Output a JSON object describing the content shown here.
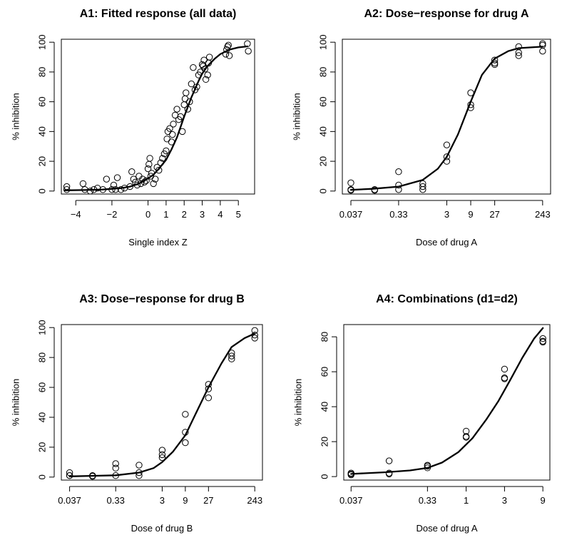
{
  "chart_data": [
    {
      "type": "scatter",
      "title": "A1: Fitted response (all data)",
      "xlabel": "Single index Z",
      "ylabel": "% inhibition",
      "x_scale": "linear",
      "xlim": [
        -4.8,
        5.9
      ],
      "ylim": [
        -2,
        102
      ],
      "x_ticks": [
        -4,
        -2,
        0,
        1,
        2,
        3,
        4,
        5
      ],
      "x_tick_labels": [
        "−4",
        "−2",
        "0",
        "1",
        "2",
        "3",
        "4",
        "5"
      ],
      "y_ticks": [
        0,
        20,
        40,
        60,
        80,
        100
      ],
      "y_tick_labels": [
        "0",
        "20",
        "40",
        "60",
        "80",
        "100"
      ],
      "curve": {
        "x": [
          -4.6,
          -3.5,
          -2.5,
          -1.5,
          -1.0,
          -0.5,
          0.0,
          0.3,
          0.6,
          1.0,
          1.3,
          1.6,
          2.0,
          2.4,
          2.8,
          3.0,
          3.3,
          3.7,
          4.0,
          4.5,
          5.0,
          5.5
        ],
        "y": [
          0.5,
          0.7,
          1.0,
          2.0,
          3.0,
          5.0,
          8.5,
          11,
          15,
          21,
          28,
          36,
          50,
          63,
          74,
          79,
          84,
          89,
          92,
          95,
          96.5,
          97.2
        ]
      },
      "points": {
        "x": [
          -4.5,
          -4.5,
          -3.6,
          -3.5,
          -3.2,
          -3.0,
          -2.8,
          -2.5,
          -2.3,
          -2.0,
          -1.9,
          -1.8,
          -1.7,
          -1.5,
          -1.3,
          -1.0,
          -0.9,
          -0.8,
          -0.7,
          -0.6,
          -0.5,
          -0.4,
          -0.3,
          -0.2,
          -0.1,
          0.0,
          0.05,
          0.1,
          0.15,
          0.2,
          0.3,
          0.4,
          0.5,
          0.6,
          0.7,
          0.8,
          0.9,
          1.0,
          1.05,
          1.1,
          1.2,
          1.3,
          1.35,
          1.4,
          1.5,
          1.6,
          1.7,
          1.8,
          1.9,
          2.0,
          2.05,
          2.1,
          2.2,
          2.3,
          2.4,
          2.5,
          2.6,
          2.7,
          2.8,
          2.9,
          3.0,
          3.05,
          3.1,
          3.15,
          3.2,
          3.3,
          3.35,
          3.4,
          4.3,
          4.35,
          4.4,
          4.45,
          4.5,
          5.5,
          5.55
        ],
        "y": [
          1,
          3,
          5,
          1,
          0,
          1,
          2,
          1,
          8,
          1,
          4,
          1,
          9,
          1,
          2,
          3,
          13,
          8,
          6,
          4,
          10,
          5,
          8,
          6,
          7,
          15,
          18,
          22,
          10,
          12,
          5,
          8,
          16,
          14,
          19,
          22,
          25,
          27,
          35,
          40,
          42,
          33,
          38,
          45,
          51,
          55,
          48,
          50,
          40,
          58,
          62,
          66,
          55,
          60,
          72,
          83,
          68,
          70,
          78,
          80,
          85,
          84,
          88,
          82,
          75,
          78,
          86,
          90,
          92,
          95,
          97,
          98,
          91,
          99,
          94
        ]
      }
    },
    {
      "type": "scatter",
      "title": "A2: Dose−response for drug A",
      "xlabel": "Dose of drug A",
      "ylabel": "% inhibition",
      "x_scale": "log",
      "xlim": [
        0.025,
        350
      ],
      "ylim": [
        -2,
        102
      ],
      "x_ticks": [
        0.037,
        0.33,
        3,
        9,
        27,
        243
      ],
      "x_tick_labels": [
        "0.037",
        "0.33",
        "3",
        "9",
        "27",
        "243"
      ],
      "y_ticks": [
        0,
        20,
        40,
        60,
        80,
        100
      ],
      "y_tick_labels": [
        "0",
        "20",
        "40",
        "60",
        "80",
        "100"
      ],
      "curve": {
        "x": [
          0.037,
          0.1,
          0.33,
          1,
          2,
          3,
          5,
          9,
          15,
          27,
          50,
          81,
          243
        ],
        "y": [
          0.8,
          1.5,
          3.0,
          7.5,
          15,
          23,
          38,
          60,
          78,
          89,
          94,
          96,
          97
        ]
      },
      "points": {
        "x": [
          0.037,
          0.037,
          0.037,
          0.11,
          0.11,
          0.33,
          0.33,
          0.33,
          1,
          1,
          1,
          3,
          3,
          3,
          9,
          9,
          9,
          27,
          27,
          27,
          81,
          81,
          81,
          243,
          243,
          243
        ],
        "y": [
          0.5,
          1,
          5.5,
          0.5,
          1,
          13,
          4,
          1,
          1,
          3,
          5,
          31,
          23,
          20,
          66,
          58,
          56,
          88,
          86,
          85,
          97,
          93,
          91,
          99,
          98,
          94
        ]
      }
    },
    {
      "type": "scatter",
      "title": "A3: Dose−response for drug B",
      "xlabel": "Dose of drug B",
      "ylabel": "% inhibition",
      "x_scale": "log",
      "xlim": [
        0.025,
        350
      ],
      "ylim": [
        -2,
        102
      ],
      "x_ticks": [
        0.037,
        0.33,
        3,
        9,
        27,
        243
      ],
      "x_tick_labels": [
        "0.037",
        "0.33",
        "3",
        "9",
        "27",
        "243"
      ],
      "y_ticks": [
        0,
        20,
        40,
        60,
        80,
        100
      ],
      "y_tick_labels": [
        "0",
        "20",
        "40",
        "60",
        "80",
        "100"
      ],
      "curve": {
        "x": [
          0.037,
          0.1,
          0.33,
          1,
          2,
          3,
          5,
          9,
          15,
          27,
          50,
          81,
          150,
          243
        ],
        "y": [
          0.5,
          0.8,
          1.2,
          3.0,
          6.0,
          10,
          17,
          28,
          43,
          60,
          76,
          87,
          93,
          96
        ]
      },
      "points": {
        "x": [
          0.037,
          0.037,
          0.037,
          0.11,
          0.11,
          0.33,
          0.33,
          0.33,
          1,
          1,
          1,
          3,
          3,
          3,
          9,
          9,
          9,
          27,
          27,
          27,
          81,
          81,
          81,
          243,
          243,
          243
        ],
        "y": [
          3,
          1,
          1,
          1,
          0.5,
          9,
          6,
          1,
          8,
          3,
          1,
          18,
          15,
          13,
          42,
          30,
          23,
          62,
          59,
          53,
          83,
          81,
          79,
          98,
          95,
          93
        ]
      }
    },
    {
      "type": "scatter",
      "title": "A4: Combinations (d1=d2)",
      "xlabel": "Dose of drug A",
      "ylabel": "% inhibition",
      "x_scale": "log",
      "xlim": [
        0.03,
        11
      ],
      "ylim": [
        -2,
        87
      ],
      "x_ticks": [
        0.037,
        0.33,
        1,
        3,
        9
      ],
      "x_tick_labels": [
        "0.037",
        "0.33",
        "1",
        "3",
        "9"
      ],
      "y_ticks": [
        0,
        20,
        40,
        60,
        80
      ],
      "y_tick_labels": [
        "0",
        "20",
        "40",
        "60",
        "80"
      ],
      "curve": {
        "x": [
          0.037,
          0.1,
          0.2,
          0.33,
          0.5,
          0.8,
          1.2,
          1.8,
          2.5,
          3.5,
          5,
          7,
          9
        ],
        "y": [
          1.5,
          2.5,
          3.5,
          5.0,
          8,
          14,
          22,
          33,
          43,
          55,
          68,
          79,
          85
        ]
      },
      "points": {
        "x": [
          0.037,
          0.037,
          0.037,
          0.11,
          0.11,
          0.11,
          0.33,
          0.33,
          0.33,
          1,
          1,
          1,
          3,
          3,
          3,
          9,
          9,
          9
        ],
        "y": [
          2,
          1.5,
          1,
          9,
          2,
          1.5,
          6.5,
          6,
          5,
          26,
          23,
          22.5,
          61.5,
          56.5,
          56,
          79,
          77.5,
          77
        ]
      }
    }
  ]
}
